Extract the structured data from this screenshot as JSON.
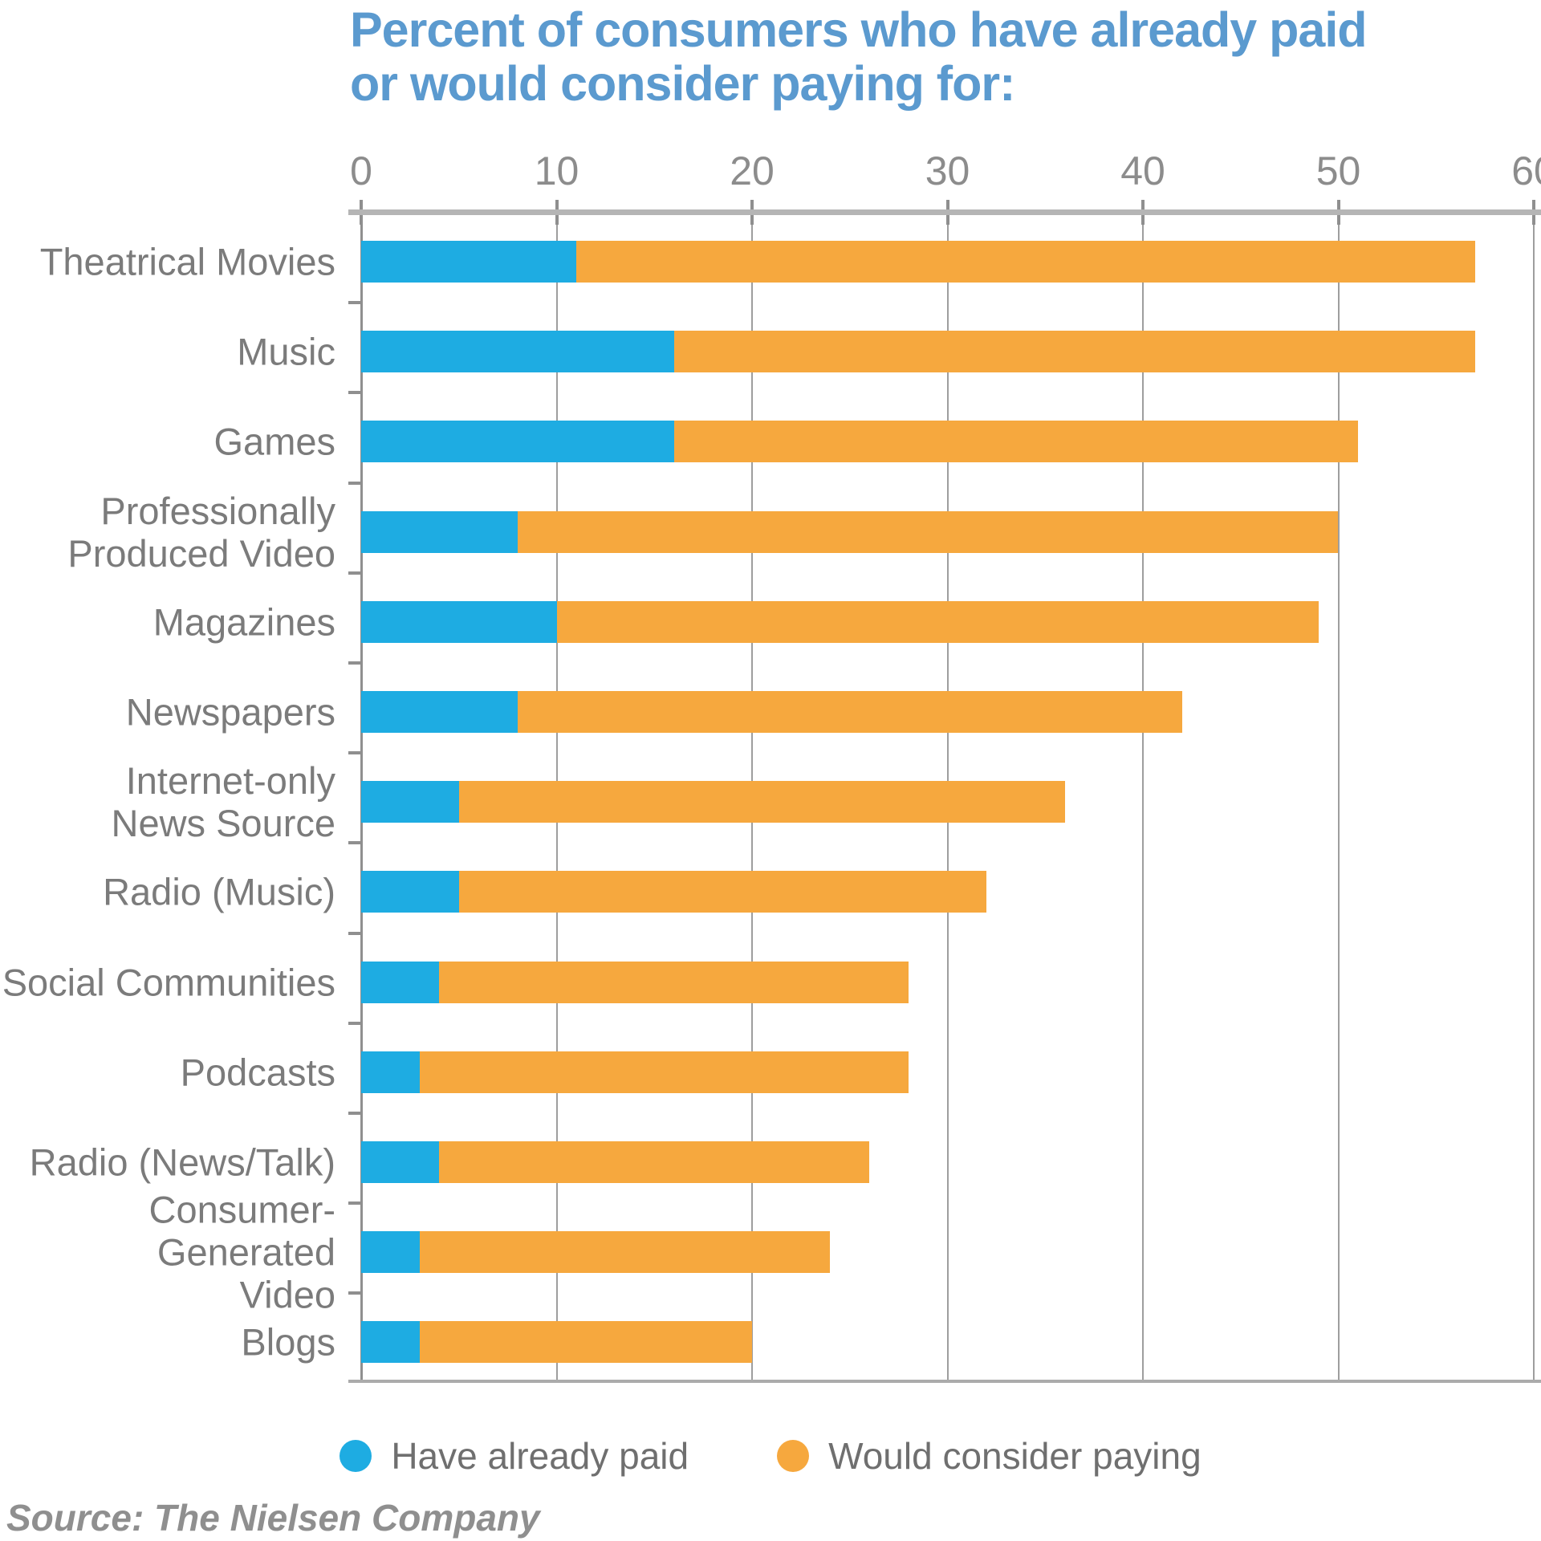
{
  "header": {
    "title_full": "Percent of consumers who have already paid or would consider paying for:",
    "title_line1": "Percent of consumers who have already paid",
    "title_line2": "or would consider paying for:"
  },
  "footer": {
    "source": "Source: The Nielsen Company"
  },
  "legend": {
    "items": [
      {
        "label": "Have already paid",
        "color": "#1eace2"
      },
      {
        "label": "Would consider paying",
        "color": "#f6a83e"
      }
    ]
  },
  "colors": {
    "paid_blue": "#1eace2",
    "consider_orange": "#f6a83e",
    "title_blue": "#5b9acf",
    "label_gray": "#7b7b7b",
    "axis_gray": "#8c8c8c"
  },
  "chart_data": {
    "type": "bar",
    "orientation": "horizontal",
    "stacked": true,
    "title": "Percent of consumers who have already paid or would consider paying for:",
    "xlabel": "",
    "ylabel": "",
    "xlim": [
      0,
      60
    ],
    "x_ticks": [
      0,
      10,
      20,
      30,
      40,
      50,
      60
    ],
    "grid": true,
    "legend_position": "bottom",
    "categories": [
      "Theatrical Movies",
      "Music",
      "Games",
      "Professionally\nProduced Video",
      "Magazines",
      "Newspapers",
      "Internet-only\nNews Source",
      "Radio (Music)",
      "Social Communities",
      "Podcasts",
      "Radio (News/Talk)",
      "Consumer-Generated\nVideo",
      "Blogs"
    ],
    "series": [
      {
        "name": "Have already paid",
        "color": "#1eace2",
        "values": [
          11,
          16,
          16,
          8,
          10,
          8,
          5,
          5,
          4,
          3,
          4,
          3,
          3
        ]
      },
      {
        "name": "Would consider paying",
        "color": "#f6a83e",
        "values": [
          46,
          41,
          35,
          42,
          39,
          34,
          31,
          27,
          24,
          25,
          22,
          21,
          17
        ]
      }
    ],
    "totals": [
      57,
      57,
      51,
      50,
      49,
      42,
      36,
      32,
      28,
      28,
      26,
      24,
      20
    ],
    "source": "Source: The Nielsen Company"
  }
}
